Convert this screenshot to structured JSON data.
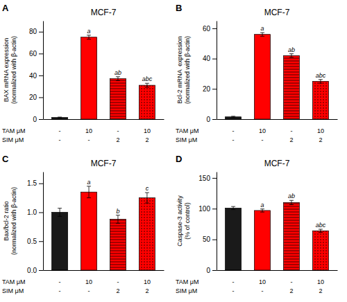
{
  "chart_data": [
    {
      "type": "bar",
      "title": "MCF-7",
      "panel_label": "A",
      "categories": [
        null,
        null,
        null,
        null
      ],
      "values": [
        1.5,
        75,
        37,
        31
      ],
      "errors": [
        0.4,
        1.8,
        1.8,
        1.8
      ],
      "colors": [
        "#1a1a1a",
        "#FF0000",
        "#FF0000",
        "#FF0000"
      ],
      "annotations": [
        null,
        "a",
        "ab",
        "abc"
      ],
      "y_label": "BAX mRNA expression\n(normalized with β-actin)",
      "ylim": [
        0,
        90
      ],
      "yticks": [
        0,
        20,
        40,
        60,
        80
      ],
      "grid": false,
      "x_label_rows": [
        {
          "label": "TAM μM",
          "labels": [
            "-",
            "10",
            "-",
            "10"
          ]
        },
        {
          "label": "SIM μM",
          "labels": [
            "-",
            "-",
            "2",
            "2"
          ]
        }
      ]
    },
    {
      "type": "bar",
      "title": "MCF-7",
      "panel_label": "B",
      "categories": [
        null,
        null,
        null,
        null
      ],
      "values": [
        1.5,
        56,
        42,
        25
      ],
      "errors": [
        0.4,
        1.2,
        1.2,
        1.2
      ],
      "colors": [
        "#1a1a1a",
        "#FF0000",
        "#FF0000",
        "#FF0000"
      ],
      "annotations": [
        null,
        "a",
        "ab",
        "abc"
      ],
      "y_label": "Bcl-2 mRNA  expression\n(normalized with β-actin)",
      "ylim": [
        0,
        65
      ],
      "yticks": [
        0,
        20,
        40,
        60
      ],
      "grid": false,
      "x_label_rows": [
        {
          "label": "TAM μM",
          "labels": [
            "-",
            "10",
            "-",
            "10"
          ]
        },
        {
          "label": "SIM μM",
          "labels": [
            "-",
            "-",
            "2",
            "2"
          ]
        }
      ]
    },
    {
      "type": "bar",
      "title": "MCF-7",
      "panel_label": "C",
      "categories": [
        null,
        null,
        null,
        null
      ],
      "values": [
        1.0,
        1.35,
        0.88,
        1.25
      ],
      "errors": [
        0.07,
        0.1,
        0.07,
        0.09
      ],
      "colors": [
        "#1a1a1a",
        "#FF0000",
        "#FF0000",
        "#FF0000"
      ],
      "annotations": [
        null,
        "a",
        "b",
        "c"
      ],
      "y_label": "Bax/bcl-2 ratio\n(normalized with β-actin)",
      "ylim": [
        0,
        1.7
      ],
      "yticks": [
        {
          "value": 0,
          "label": "0.0"
        },
        0.5,
        {
          "value": 1,
          "label": "1.0"
        },
        1.5
      ],
      "grid": false,
      "x_label_rows": [
        {
          "label": "TAM μM",
          "labels": [
            "-",
            "10",
            "-",
            "10"
          ]
        },
        {
          "label": "SIM μM",
          "labels": [
            "-",
            "-",
            "2",
            "2"
          ]
        }
      ]
    },
    {
      "type": "bar",
      "title": "MCF-7",
      "panel_label": "D",
      "categories": [
        null,
        null,
        null,
        null
      ],
      "values": [
        101,
        97,
        110,
        64
      ],
      "errors": [
        2.5,
        2.5,
        3.5,
        2.5
      ],
      "colors": [
        "#1a1a1a",
        "#FF0000",
        "#FF0000",
        "#FF0000"
      ],
      "annotations": [
        null,
        "a",
        "ab",
        "abc"
      ],
      "y_label": "Caspase-3 activity\n(% of control)",
      "ylim": [
        0,
        160
      ],
      "yticks": [
        0,
        50,
        100,
        150
      ],
      "grid": false,
      "x_label_rows": [
        {
          "label": "TAM μM",
          "labels": [
            "-",
            "10",
            "-",
            "10"
          ]
        },
        {
          "label": "SIM μM",
          "labels": [
            "-",
            "-",
            "2",
            "2"
          ]
        }
      ]
    }
  ]
}
